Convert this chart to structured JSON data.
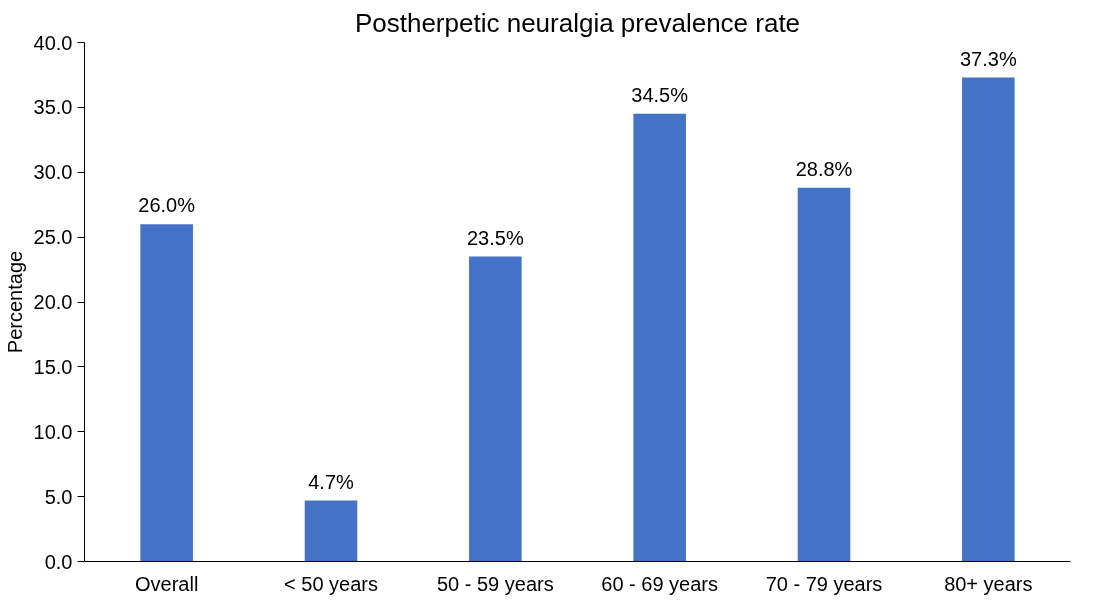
{
  "chart_data": {
    "type": "bar",
    "title": "Postherpetic neuralgia prevalence rate",
    "ylabel": "Percentage",
    "categories": [
      "Overall",
      "< 50 years",
      "50 - 59 years",
      "60 - 69 years",
      "70 - 79 years",
      "80+ years"
    ],
    "values": [
      26.0,
      4.7,
      23.5,
      34.5,
      28.8,
      37.3
    ],
    "value_labels": [
      "26.0%",
      "4.7%",
      "23.5%",
      "34.5%",
      "28.8%",
      "37.3%"
    ],
    "color": "#4472c4",
    "ylim": [
      0,
      40
    ],
    "yticks": [
      {
        "value": 0,
        "label": "0.0"
      },
      {
        "value": 5,
        "label": "5.0"
      },
      {
        "value": 10,
        "label": "10.0"
      },
      {
        "value": 15,
        "label": "15.0"
      },
      {
        "value": 20,
        "label": "20.0"
      },
      {
        "value": 25,
        "label": "25.0"
      },
      {
        "value": 30,
        "label": "30.0"
      },
      {
        "value": 35,
        "label": "35.0"
      },
      {
        "value": 40,
        "label": "40.0"
      }
    ],
    "grid": false
  }
}
